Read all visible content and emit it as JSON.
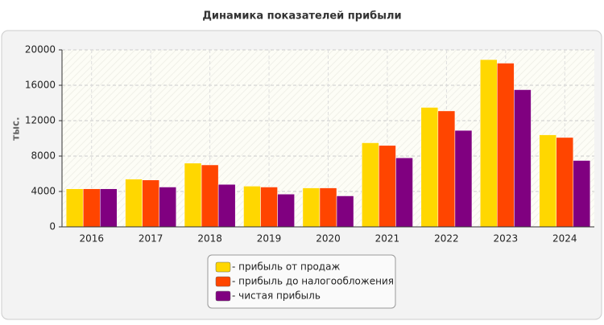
{
  "chart_data": {
    "type": "bar",
    "title": "Динамика показателей прибыли",
    "y_label": "тыс.",
    "categories": [
      "2016",
      "2017",
      "2018",
      "2019",
      "2020",
      "2021",
      "2022",
      "2023",
      "2024"
    ],
    "series": [
      {
        "name": "- прибыль от продаж",
        "color": "#FFD700",
        "values": [
          4300,
          5400,
          7200,
          4600,
          4400,
          9500,
          13500,
          18900,
          10400
        ]
      },
      {
        "name": "- прибыль до налогообложения",
        "color": "#FF4500",
        "values": [
          4300,
          5300,
          7000,
          4500,
          4400,
          9200,
          13100,
          18500,
          10100
        ]
      },
      {
        "name": "- чистая прибыль",
        "color": "#800080",
        "values": [
          4300,
          4500,
          4800,
          3700,
          3500,
          7800,
          10900,
          15500,
          7500
        ]
      }
    ],
    "ylim": [
      0,
      20000
    ],
    "yticks": [
      0,
      4000,
      8000,
      12000,
      16000,
      20000
    ],
    "grid": true,
    "legend": "bottom"
  }
}
